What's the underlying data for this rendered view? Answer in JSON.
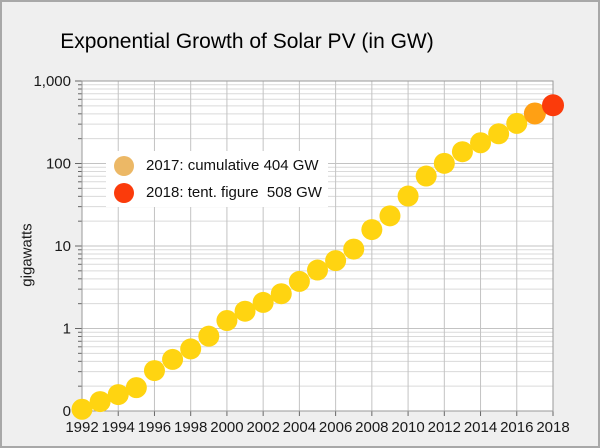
{
  "figure": {
    "title": "Exponential Growth of Solar PV (in GW)"
  },
  "legend": {
    "items": [
      {
        "label": "2017: cumulative 404 GW",
        "color": "#ecb866"
      },
      {
        "label": "2018: tent. figure  508 GW",
        "color": "#fb3b0b"
      }
    ]
  },
  "chart_data": {
    "type": "scatter",
    "title": "Exponential Growth of Solar PV (in GW)",
    "xlabel": "",
    "ylabel": "gigawatts",
    "y_scale": "log",
    "xlim": [
      1992,
      2018
    ],
    "ylim": [
      0.1,
      1000
    ],
    "grid": true,
    "legend_position": "upper-left-inside",
    "x": [
      1992,
      1993,
      1994,
      1995,
      1996,
      1997,
      1998,
      1999,
      2000,
      2001,
      2002,
      2003,
      2004,
      2005,
      2006,
      2007,
      2008,
      2009,
      2010,
      2011,
      2012,
      2013,
      2014,
      2015,
      2016,
      2017,
      2018
    ],
    "values": [
      0.105,
      0.13,
      0.158,
      0.192,
      0.309,
      0.422,
      0.566,
      0.807,
      1.25,
      1.62,
      2.07,
      2.64,
      3.72,
      5.11,
      6.66,
      9.18,
      15.8,
      23.2,
      40.3,
      70.5,
      100.5,
      138.9,
      178.4,
      229.3,
      306.5,
      404,
      508
    ],
    "x_ticks": [
      1992,
      1994,
      1996,
      1998,
      2000,
      2002,
      2004,
      2006,
      2008,
      2010,
      2012,
      2014,
      2016,
      2018
    ],
    "y_ticks": [
      {
        "label": "1,000",
        "value": 1000
      },
      {
        "label": "100",
        "value": 100
      },
      {
        "label": "10",
        "value": 10
      },
      {
        "label": "1",
        "value": 1
      },
      {
        "label": "0",
        "value": 0.1
      }
    ],
    "default_point_color": "#ffd411",
    "highlight_points": [
      {
        "year": 2017,
        "value": 404,
        "color": "#ffa014"
      },
      {
        "year": 2018,
        "value": 508,
        "color": "#fb3b0b"
      }
    ]
  },
  "colors": {
    "page_background": "#efefef",
    "plot_background": "#ffffff",
    "grid_major": "#c3c3c3",
    "grid_minor": "#dadada",
    "frame": "#9a9a9a",
    "tick": "#666666",
    "text": "#1a1a1a",
    "border": "#a8a8a8"
  }
}
